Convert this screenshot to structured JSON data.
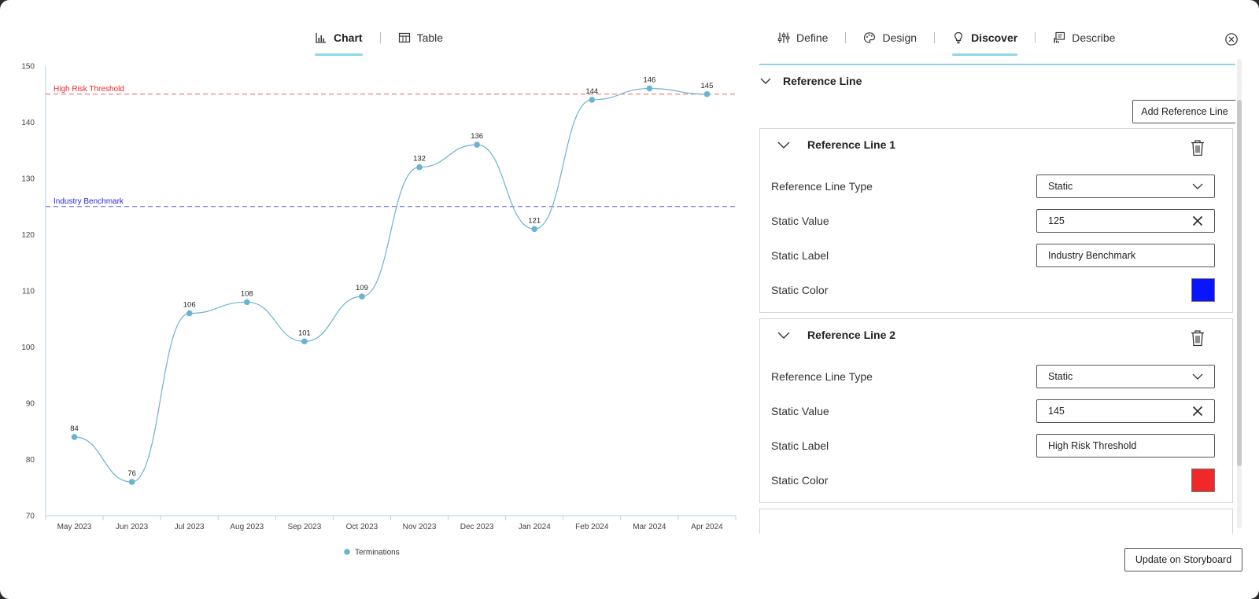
{
  "left_tabs": [
    {
      "label": "Chart",
      "icon": "bar-chart-icon",
      "active": true
    },
    {
      "label": "Table",
      "icon": "table-icon",
      "active": false
    }
  ],
  "right_tabs": [
    {
      "label": "Define",
      "icon": "sliders-icon",
      "active": false
    },
    {
      "label": "Design",
      "icon": "palette-icon",
      "active": false
    },
    {
      "label": "Discover",
      "icon": "lightbulb-icon",
      "active": true
    },
    {
      "label": "Describe",
      "icon": "comment-chart-icon",
      "active": false
    }
  ],
  "panel": {
    "section_title": "Reference Line",
    "add_button": "Add Reference Line",
    "update_button": "Update on Storyboard",
    "reference_lines": [
      {
        "title": "Reference Line 1",
        "type_label": "Reference Line Type",
        "type_value": "Static",
        "value_label": "Static Value",
        "value": "125",
        "text_label": "Static Label",
        "text": "Industry Benchmark",
        "color_label": "Static Color",
        "color": "#0a14ff"
      },
      {
        "title": "Reference Line 2",
        "type_label": "Reference Line Type",
        "type_value": "Static",
        "value_label": "Static Value",
        "value": "145",
        "text_label": "Static Label",
        "text": "High Risk Threshold",
        "color_label": "Static Color",
        "color": "#f02828"
      }
    ]
  },
  "chart_data": {
    "type": "line",
    "categories": [
      "May 2023",
      "Jun 2023",
      "Jul 2023",
      "Aug 2023",
      "Sep 2023",
      "Oct 2023",
      "Nov 2023",
      "Dec 2023",
      "Jan 2024",
      "Feb 2024",
      "Mar 2024",
      "Apr 2024"
    ],
    "series": [
      {
        "name": "Terminations",
        "values": [
          84,
          76,
          106,
          108,
          101,
          109,
          132,
          136,
          121,
          144,
          146,
          145
        ],
        "color": "#6ab3d0"
      }
    ],
    "ylim": [
      70,
      150
    ],
    "yticks": [
      70,
      80,
      90,
      100,
      110,
      120,
      130,
      140,
      150
    ],
    "reference_lines": [
      {
        "label": "High Risk Threshold",
        "value": 145,
        "color": "#f02828"
      },
      {
        "label": "Industry Benchmark",
        "value": 125,
        "color": "#2a2ad6"
      }
    ],
    "legend": "bottom-center",
    "grid": false
  }
}
